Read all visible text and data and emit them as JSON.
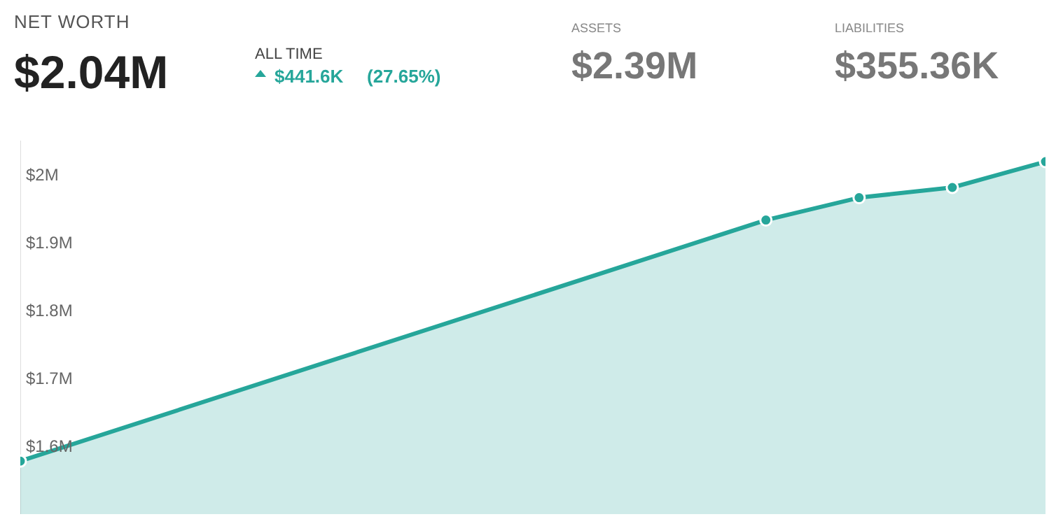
{
  "chart_data": {
    "type": "area",
    "title": "NET WORTH",
    "annotations": [
      "$2.04M",
      "ALL TIME",
      "$441.6K",
      "(27.65%)",
      "ASSETS",
      "$2.39M",
      "LIABILITIES",
      "$355.36K"
    ],
    "categories": [
      null,
      null,
      null,
      null,
      null,
      null,
      null,
      null,
      null,
      null,
      null,
      null
    ],
    "series": [
      {
        "color": "#26a69a",
        "values": [
          1.578,
          null,
          null,
          null,
          null,
          null,
          null,
          null,
          1.933,
          1.966,
          1.981,
          2.019
        ]
      }
    ],
    "ylim": [
      1.5,
      2.05
    ],
    "yticks": [
      {
        "value": 1.6,
        "label": "$1.6M"
      },
      {
        "value": 1.7,
        "label": "$1.7M"
      },
      {
        "value": 1.8,
        "label": "$1.8M"
      },
      {
        "value": 1.9,
        "label": "$1.9M"
      },
      {
        "value": 2.0,
        "label": "$2M"
      }
    ],
    "tick_labels": "y",
    "grid": false,
    "marker": "circle",
    "line_style": "solid"
  }
}
